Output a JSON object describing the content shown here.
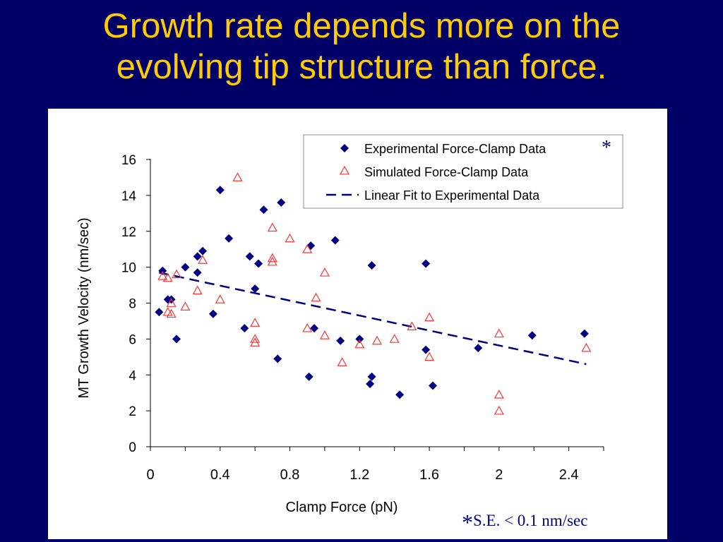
{
  "slide": {
    "title_line1": "Growth rate depends more on the",
    "title_line2": "evolving tip structure than force.",
    "footnote_star": "*",
    "footnote_text": "S.E. < 0.1 nm/sec"
  },
  "colors": {
    "background": "#000066",
    "title": "#ffcc00",
    "experimental": "#000080",
    "simulated": "#ff3333",
    "fit": "#000080",
    "footnote": "#000080"
  },
  "chart_data": {
    "type": "scatter",
    "title": "",
    "xlabel": "Clamp Force (pN)",
    "ylabel": "MT Growth Velocity (nm/sec)",
    "xlim": [
      0,
      2.6
    ],
    "ylim": [
      0,
      16
    ],
    "xticks": [
      0,
      0.4,
      0.8,
      1.2,
      1.6,
      2,
      2.4
    ],
    "xtick_labels": [
      "0",
      "0.4",
      "0.8",
      "1.2",
      "1.6",
      "2",
      "2.4"
    ],
    "yticks": [
      0,
      2,
      4,
      6,
      8,
      10,
      12,
      14,
      16
    ],
    "ytick_labels": [
      "0",
      "2",
      "4",
      "6",
      "8",
      "10",
      "12",
      "14",
      "16"
    ],
    "grid": false,
    "legend_position": "top-right",
    "legend_star": "*",
    "series": [
      {
        "name": "Experimental Force-Clamp Data",
        "marker": "diamond",
        "color": "#000080",
        "points": [
          [
            0.05,
            7.5
          ],
          [
            0.07,
            9.8
          ],
          [
            0.1,
            8.2
          ],
          [
            0.12,
            8.2
          ],
          [
            0.15,
            6.0
          ],
          [
            0.2,
            10.0
          ],
          [
            0.27,
            10.6
          ],
          [
            0.27,
            9.7
          ],
          [
            0.3,
            10.9
          ],
          [
            0.36,
            7.4
          ],
          [
            0.4,
            14.3
          ],
          [
            0.45,
            11.6
          ],
          [
            0.54,
            6.6
          ],
          [
            0.57,
            10.6
          ],
          [
            0.6,
            8.8
          ],
          [
            0.62,
            10.2
          ],
          [
            0.65,
            13.2
          ],
          [
            0.73,
            4.9
          ],
          [
            0.75,
            13.6
          ],
          [
            0.91,
            3.9
          ],
          [
            0.92,
            11.2
          ],
          [
            0.94,
            6.6
          ],
          [
            1.06,
            11.5
          ],
          [
            1.09,
            5.9
          ],
          [
            1.2,
            6.0
          ],
          [
            1.26,
            3.5
          ],
          [
            1.27,
            3.9
          ],
          [
            1.27,
            10.1
          ],
          [
            1.43,
            2.9
          ],
          [
            1.58,
            10.2
          ],
          [
            1.58,
            5.4
          ],
          [
            1.62,
            3.4
          ],
          [
            1.88,
            5.5
          ],
          [
            2.19,
            6.2
          ],
          [
            2.49,
            6.3
          ]
        ]
      },
      {
        "name": "Simulated Force-Clamp Data",
        "marker": "triangle",
        "color": "#ff3333",
        "points": [
          [
            0.07,
            9.5
          ],
          [
            0.1,
            9.4
          ],
          [
            0.1,
            7.5
          ],
          [
            0.12,
            8.0
          ],
          [
            0.12,
            7.4
          ],
          [
            0.15,
            9.6
          ],
          [
            0.2,
            7.8
          ],
          [
            0.27,
            8.7
          ],
          [
            0.3,
            10.4
          ],
          [
            0.4,
            8.2
          ],
          [
            0.5,
            15.0
          ],
          [
            0.6,
            6.9
          ],
          [
            0.6,
            6.0
          ],
          [
            0.6,
            5.8
          ],
          [
            0.7,
            12.2
          ],
          [
            0.7,
            10.5
          ],
          [
            0.7,
            10.3
          ],
          [
            0.8,
            11.6
          ],
          [
            0.9,
            11.0
          ],
          [
            0.9,
            6.6
          ],
          [
            0.95,
            8.3
          ],
          [
            1.0,
            9.7
          ],
          [
            1.0,
            6.2
          ],
          [
            1.1,
            4.7
          ],
          [
            1.2,
            5.7
          ],
          [
            1.3,
            5.9
          ],
          [
            1.4,
            6.0
          ],
          [
            1.5,
            6.7
          ],
          [
            1.6,
            7.2
          ],
          [
            1.6,
            5.0
          ],
          [
            2.0,
            6.3
          ],
          [
            2.0,
            2.9
          ],
          [
            2.0,
            2.0
          ],
          [
            2.5,
            5.5
          ]
        ]
      },
      {
        "name": "Linear Fit to Experimental Data",
        "style": "dashed-line",
        "color": "#000080",
        "points": [
          [
            0.05,
            9.7
          ],
          [
            2.5,
            4.6
          ]
        ]
      }
    ]
  }
}
